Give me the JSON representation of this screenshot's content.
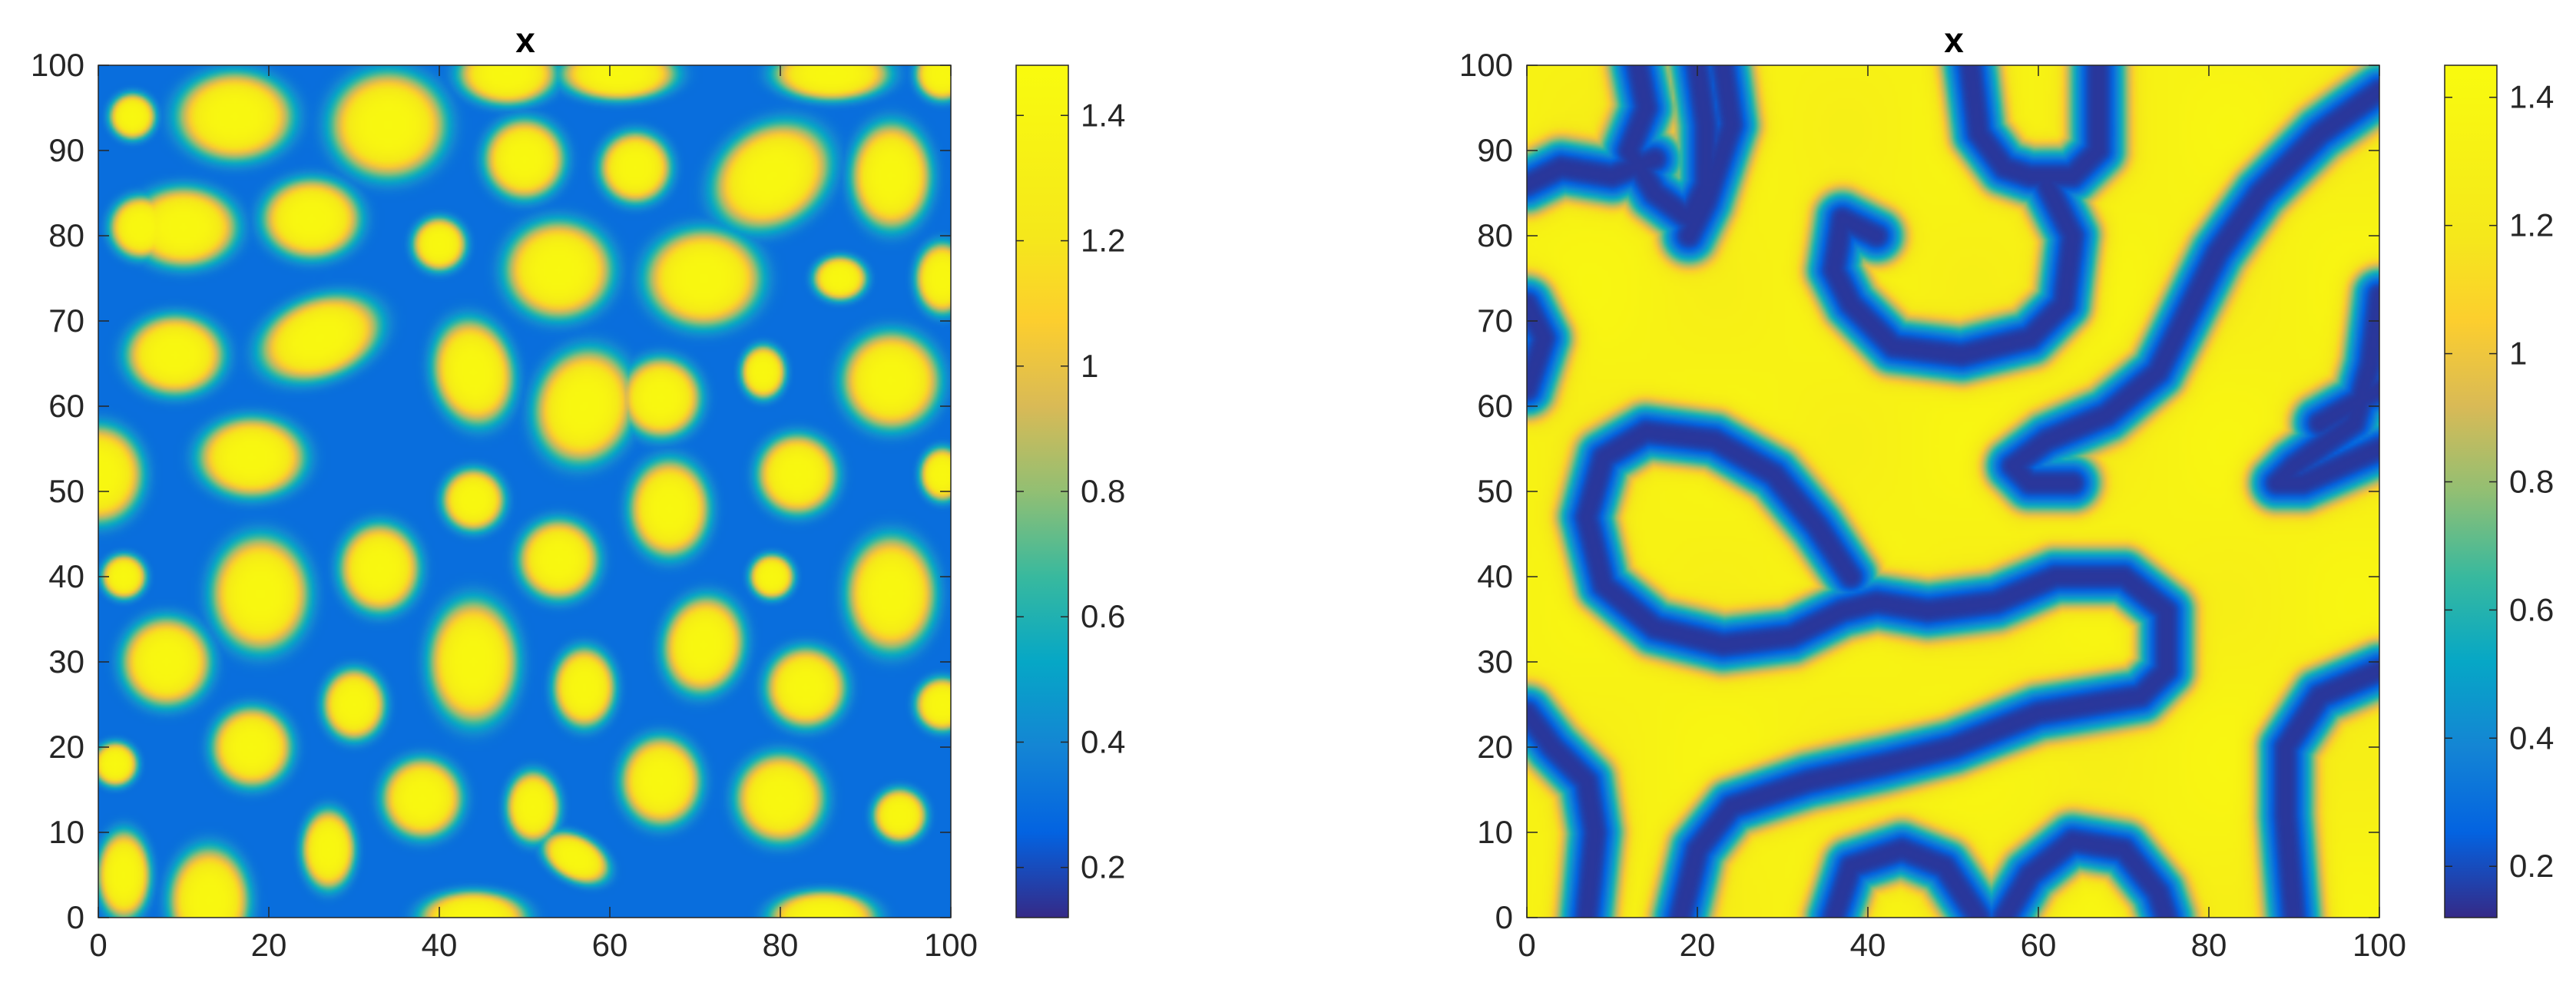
{
  "chart_data": [
    {
      "type": "heatmap",
      "title": "x",
      "xlabel": "",
      "ylabel": "",
      "xlim": [
        0,
        100
      ],
      "ylim": [
        0,
        100
      ],
      "xticks": [
        "0",
        "20",
        "40",
        "60",
        "80",
        "100"
      ],
      "yticks": [
        "0",
        "10",
        "20",
        "30",
        "40",
        "50",
        "60",
        "70",
        "80",
        "90",
        "100"
      ],
      "colorbar": {
        "range": [
          0.12,
          1.48
        ],
        "ticks": [
          "0.2",
          "0.4",
          "0.6",
          "0.8",
          "1",
          "1.2",
          "1.4"
        ],
        "colormap": "parula"
      },
      "pattern": "spots",
      "background_value": 0.3,
      "spots": [
        [
          4,
          94,
          2.6,
          2.6,
          0
        ],
        [
          16,
          94,
          6.5,
          5,
          0
        ],
        [
          34,
          93,
          6.5,
          6,
          0
        ],
        [
          48,
          99,
          5.5,
          3.5,
          0
        ],
        [
          61,
          99,
          6.5,
          3,
          0
        ],
        [
          86,
          99,
          6.5,
          3,
          0
        ],
        [
          99,
          99,
          3,
          3,
          0
        ],
        [
          5,
          81,
          3.5,
          3.5,
          0
        ],
        [
          10,
          81,
          6,
          4.5,
          0
        ],
        [
          25,
          82,
          5.5,
          4.5,
          0
        ],
        [
          50,
          89,
          4.5,
          4.5,
          0
        ],
        [
          63,
          88,
          4,
          4,
          0
        ],
        [
          79,
          87,
          7,
          5.5,
          0.6
        ],
        [
          93,
          87,
          4.5,
          6,
          0
        ],
        [
          40,
          79,
          3,
          3,
          0
        ],
        [
          54,
          76,
          6,
          5.5,
          0
        ],
        [
          71,
          75,
          6.5,
          5.5,
          0
        ],
        [
          87,
          75,
          3,
          2.5,
          0
        ],
        [
          99,
          75,
          3,
          4,
          0
        ],
        [
          9,
          66,
          5.5,
          4.5,
          0
        ],
        [
          26,
          68,
          7,
          4.5,
          0.35
        ],
        [
          44,
          64,
          4.5,
          6,
          0.2
        ],
        [
          57,
          60,
          5.5,
          6.5,
          -0.3
        ],
        [
          66,
          61,
          4.5,
          4.5,
          0
        ],
        [
          78,
          64,
          2.5,
          3,
          0
        ],
        [
          93,
          63,
          5.5,
          5.5,
          0
        ],
        [
          0,
          52,
          5,
          5.5,
          0
        ],
        [
          18,
          54,
          6,
          4.5,
          0
        ],
        [
          3,
          40,
          2.5,
          2.5,
          0
        ],
        [
          44,
          49,
          3.5,
          3.5,
          0
        ],
        [
          67,
          48,
          4.5,
          5.5,
          0
        ],
        [
          82,
          52,
          4.5,
          4.5,
          0
        ],
        [
          99,
          52,
          2.5,
          3,
          0
        ],
        [
          19,
          38,
          5.5,
          6.5,
          0
        ],
        [
          33,
          41,
          4.5,
          5,
          0
        ],
        [
          54,
          42,
          4.5,
          4.5,
          0
        ],
        [
          79,
          40,
          2.5,
          2.5,
          0
        ],
        [
          93,
          38,
          5,
          6.5,
          0
        ],
        [
          8,
          30,
          5,
          5,
          0
        ],
        [
          30,
          25,
          3.5,
          4,
          0
        ],
        [
          44,
          30,
          5,
          7,
          0
        ],
        [
          57,
          27,
          3.5,
          4.5,
          0
        ],
        [
          71,
          32,
          4.5,
          5.5,
          -0.2
        ],
        [
          83,
          27,
          4.5,
          4.5,
          0
        ],
        [
          99,
          25,
          3,
          3,
          0
        ],
        [
          18,
          20,
          4.5,
          4.5,
          0
        ],
        [
          2,
          18,
          2.5,
          2.5,
          0
        ],
        [
          38,
          14,
          4.5,
          4.5,
          0
        ],
        [
          51,
          13,
          3,
          4,
          0
        ],
        [
          56,
          7,
          4,
          2.5,
          -0.5
        ],
        [
          66,
          16,
          4.5,
          5,
          0
        ],
        [
          80,
          14,
          5,
          5,
          0
        ],
        [
          94,
          12,
          3,
          3,
          0
        ],
        [
          3,
          5,
          3,
          5,
          0
        ],
        [
          13,
          2,
          4.5,
          6,
          0
        ],
        [
          27,
          8,
          3,
          4.5,
          0
        ],
        [
          44,
          0,
          6,
          3,
          0
        ],
        [
          85,
          0,
          6,
          3,
          0
        ]
      ],
      "paths": []
    },
    {
      "type": "heatmap",
      "title": "x",
      "xlabel": "",
      "ylabel": "",
      "xlim": [
        0,
        100
      ],
      "ylim": [
        0,
        100
      ],
      "xticks": [
        "0",
        "20",
        "40",
        "60",
        "80",
        "100"
      ],
      "yticks": [
        "0",
        "10",
        "20",
        "30",
        "40",
        "50",
        "60",
        "70",
        "80",
        "90",
        "100"
      ],
      "colorbar": {
        "range": [
          0.12,
          1.45
        ],
        "ticks": [
          "0.2",
          "0.4",
          "0.6",
          "0.8",
          "1",
          "1.2",
          "1.4"
        ],
        "colormap": "parula"
      },
      "pattern": "labyrinth",
      "background_value": 1.33,
      "spots": [],
      "paths": [
        [
          [
            0,
            86
          ],
          [
            4,
            88
          ],
          [
            10,
            87
          ],
          [
            15,
            89
          ]
        ],
        [
          [
            13,
            100
          ],
          [
            14,
            95
          ],
          [
            12,
            90
          ],
          [
            15,
            85
          ],
          [
            19,
            82
          ],
          [
            21,
            86
          ],
          [
            21,
            93
          ],
          [
            20,
            100
          ]
        ],
        [
          [
            23,
            100
          ],
          [
            24,
            93
          ],
          [
            21,
            84
          ],
          [
            19,
            80
          ]
        ],
        [
          [
            0,
            72
          ],
          [
            2,
            68
          ],
          [
            0,
            62
          ]
        ],
        [
          [
            52,
            100
          ],
          [
            53,
            92
          ],
          [
            56,
            88
          ],
          [
            59,
            87
          ],
          [
            64,
            87
          ],
          [
            67,
            90
          ],
          [
            67,
            100
          ]
        ],
        [
          [
            41,
            80
          ],
          [
            37,
            82
          ],
          [
            36,
            76
          ],
          [
            38,
            72
          ],
          [
            43,
            67
          ],
          [
            51,
            66
          ],
          [
            59,
            68
          ],
          [
            63,
            72
          ],
          [
            64,
            80
          ],
          [
            61,
            86
          ]
        ],
        [
          [
            100,
            97
          ],
          [
            93,
            92
          ],
          [
            86,
            85
          ],
          [
            81,
            78
          ],
          [
            78,
            72
          ],
          [
            74,
            64
          ],
          [
            68,
            59
          ],
          [
            61,
            56
          ],
          [
            57,
            53
          ],
          [
            59,
            51
          ],
          [
            64,
            51
          ]
        ],
        [
          [
            100,
            73
          ],
          [
            99,
            65
          ],
          [
            97,
            58
          ],
          [
            90,
            53
          ],
          [
            88,
            51
          ],
          [
            91,
            51
          ],
          [
            100,
            55
          ]
        ],
        [
          [
            38,
            40
          ],
          [
            34,
            46
          ],
          [
            29,
            52
          ],
          [
            22,
            56
          ],
          [
            14,
            57
          ],
          [
            9,
            54
          ],
          [
            7,
            47
          ],
          [
            9,
            39
          ],
          [
            15,
            34
          ],
          [
            23,
            32
          ],
          [
            31,
            33
          ],
          [
            37,
            36
          ],
          [
            41,
            37
          ],
          [
            47,
            36
          ],
          [
            55,
            37
          ],
          [
            62,
            40
          ],
          [
            70,
            40
          ],
          [
            75,
            36
          ],
          [
            75,
            29
          ],
          [
            72,
            26
          ],
          [
            60,
            24
          ],
          [
            50,
            20
          ],
          [
            42,
            18
          ],
          [
            33,
            16
          ],
          [
            24,
            13
          ],
          [
            20,
            8
          ],
          [
            18,
            0
          ]
        ],
        [
          [
            0,
            24
          ],
          [
            3,
            20
          ],
          [
            7,
            16
          ],
          [
            8,
            10
          ],
          [
            7,
            0
          ]
        ],
        [
          [
            36,
            0
          ],
          [
            38,
            6
          ],
          [
            44,
            8
          ],
          [
            49,
            6
          ],
          [
            53,
            0
          ]
        ],
        [
          [
            56,
            0
          ],
          [
            59,
            5
          ],
          [
            64,
            9
          ],
          [
            70,
            8
          ],
          [
            74,
            3
          ],
          [
            75,
            0
          ]
        ],
        [
          [
            100,
            29
          ],
          [
            93,
            26
          ],
          [
            89,
            20
          ],
          [
            89,
            12
          ],
          [
            90,
            0
          ]
        ],
        [
          [
            100,
            62
          ],
          [
            93,
            58
          ]
        ]
      ]
    }
  ]
}
